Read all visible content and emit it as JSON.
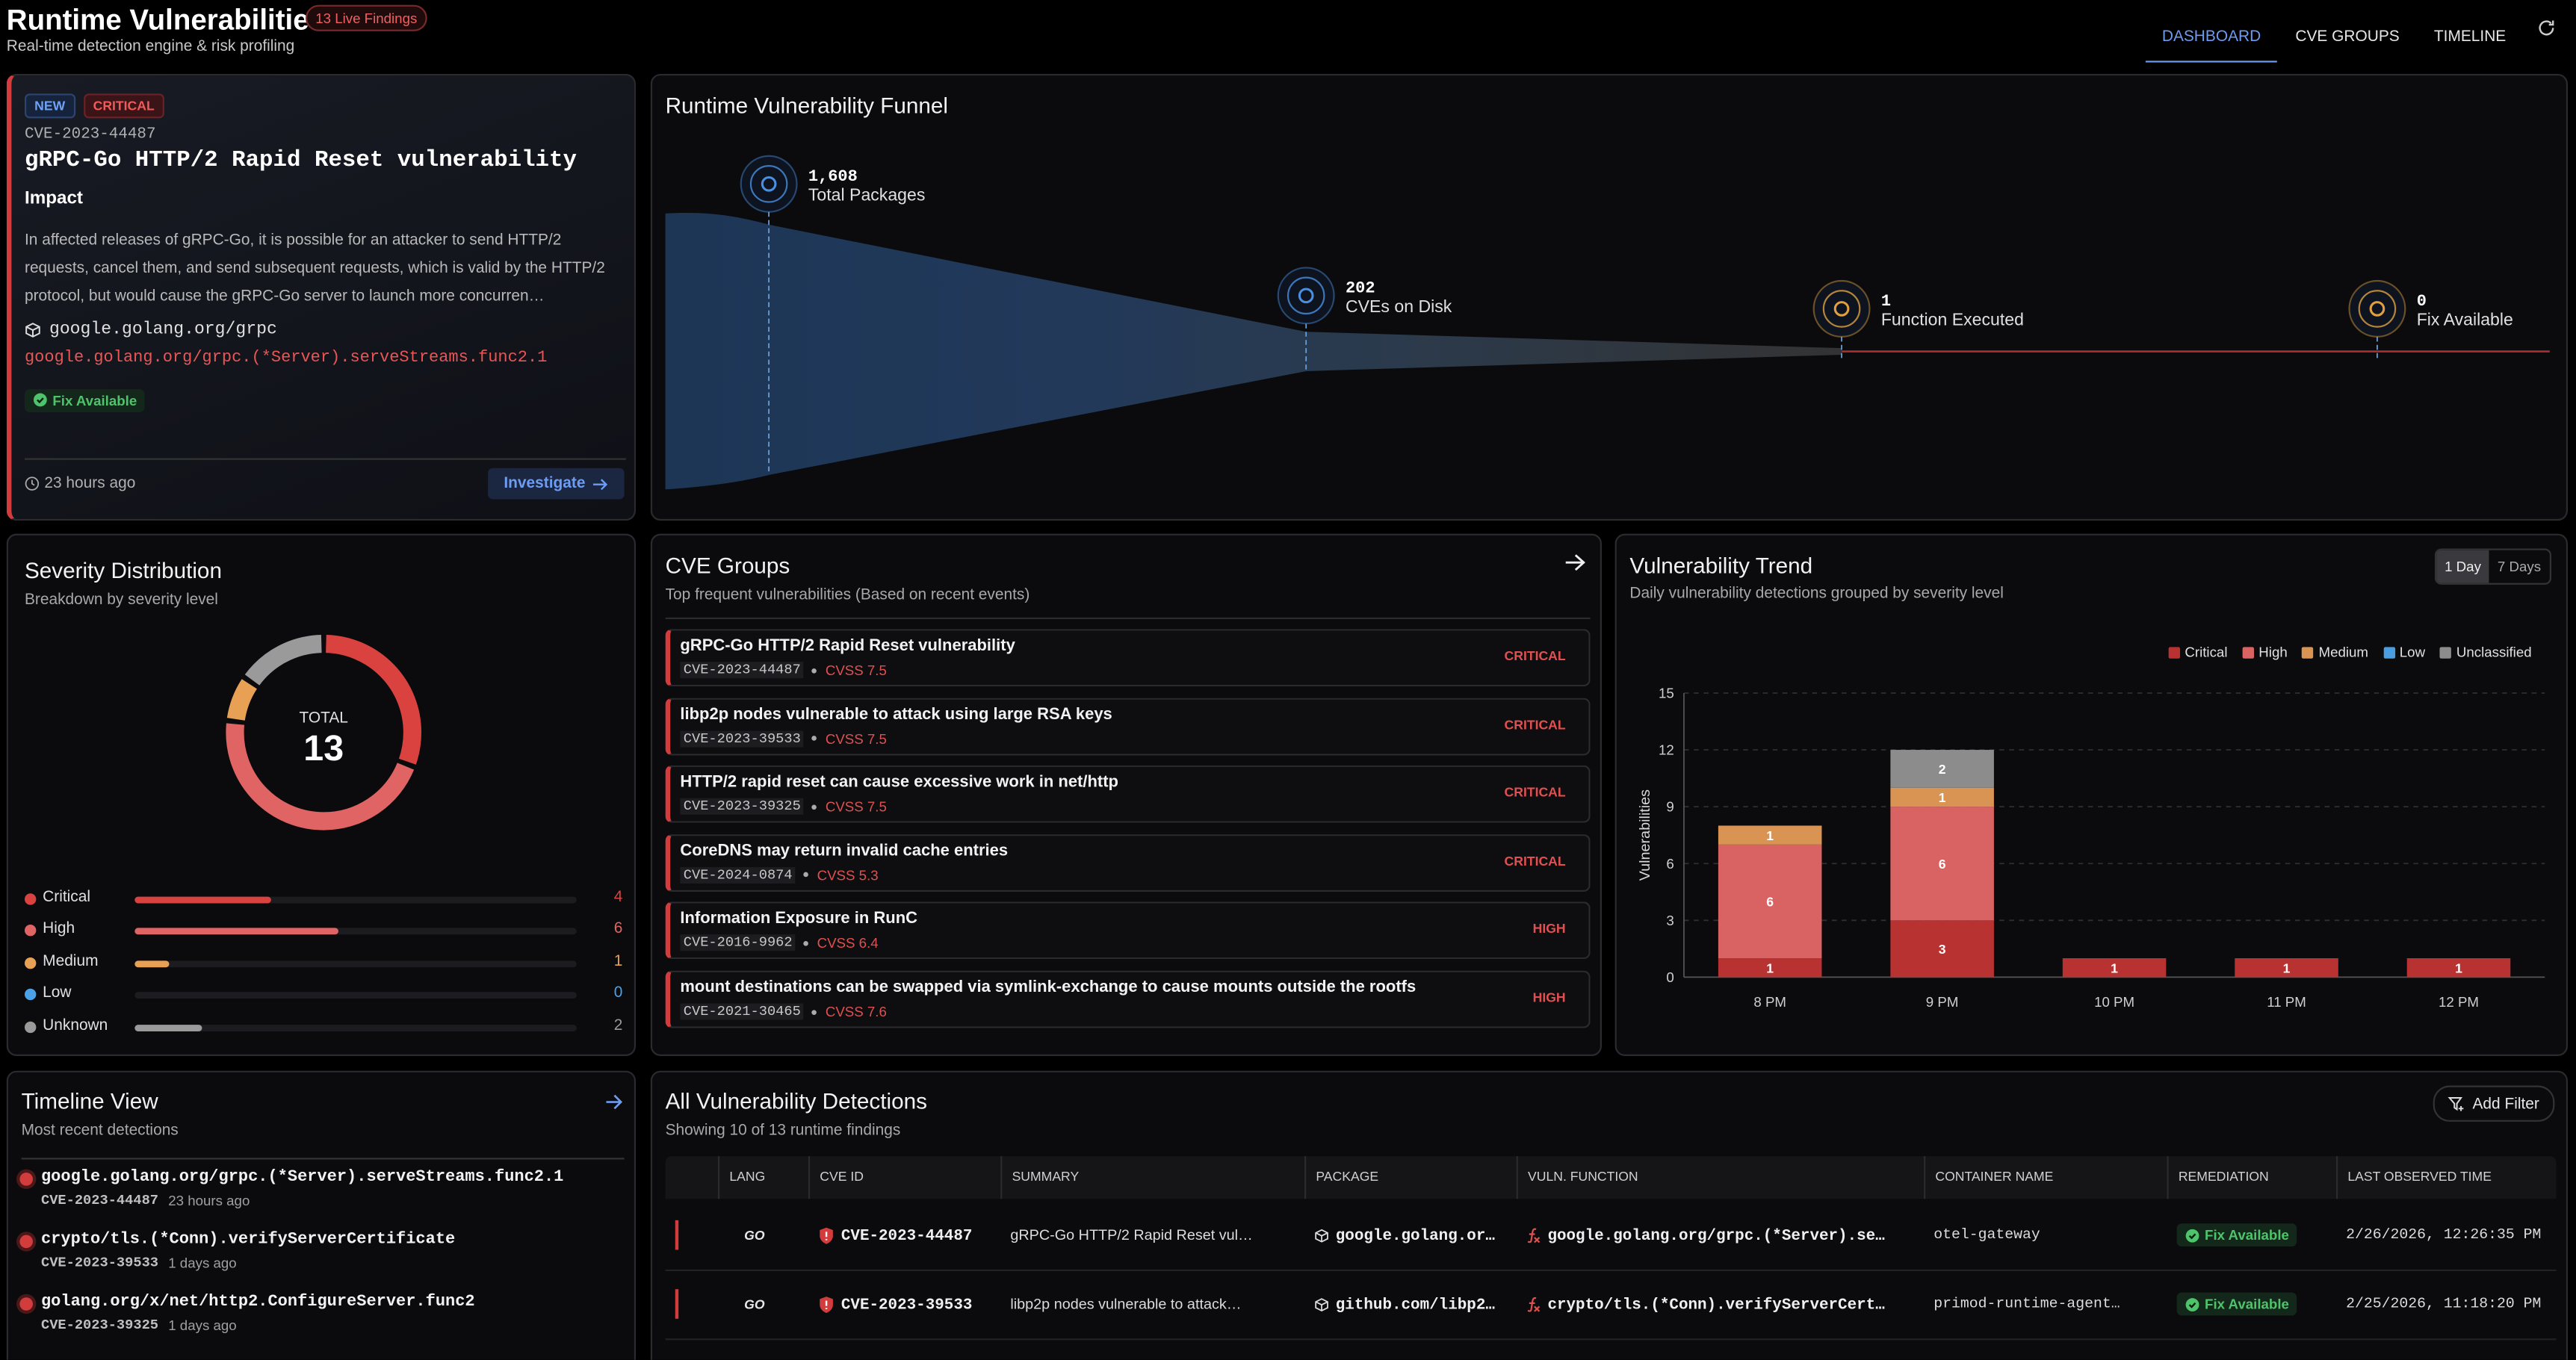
{
  "header": {
    "title": "Runtime Vulnerabilities",
    "badge": "13 Live Findings",
    "subtitle": "Real-time detection engine & risk profiling",
    "tabs": [
      "DASHBOARD",
      "CVE GROUPS",
      "TIMELINE"
    ]
  },
  "featured": {
    "tags": [
      "NEW",
      "CRITICAL"
    ],
    "cve": "CVE-2023-44487",
    "title": "gRPC-Go HTTP/2 Rapid Reset vulnerability",
    "impact_label": "Impact",
    "description": "In affected releases of gRPC-Go, it is possible for an attacker to send HTTP/2 requests, cancel them, and send subsequent requests, which is valid by the HTTP/2 protocol, but would cause the gRPC-Go server to launch more concurren…",
    "package": "google.golang.org/grpc",
    "function": "google.golang.org/grpc.(*Server).serveStreams.func2.1",
    "fix": "Fix Available",
    "time": "23 hours ago",
    "action": "Investigate"
  },
  "funnel": {
    "title": "Runtime Vulnerability Funnel",
    "stages": [
      {
        "count": "1,608",
        "label": "Total Packages"
      },
      {
        "count": "202",
        "label": "CVEs on Disk"
      },
      {
        "count": "1",
        "label": "Function Executed"
      },
      {
        "count": "0",
        "label": "Fix Available"
      }
    ]
  },
  "severity": {
    "title": "Severity Distribution",
    "subtitle": "Breakdown by severity level",
    "total_label": "TOTAL",
    "total": 13,
    "rows": [
      {
        "name": "Critical",
        "value": 4,
        "color": "#d9423f"
      },
      {
        "name": "High",
        "value": 6,
        "color": "#e06464"
      },
      {
        "name": "Medium",
        "value": 1,
        "color": "#e8a055"
      },
      {
        "name": "Low",
        "value": 0,
        "color": "#4aa3e8"
      },
      {
        "name": "Unknown",
        "value": 2,
        "color": "#9a9a9a"
      }
    ]
  },
  "cve_groups": {
    "title": "CVE Groups",
    "subtitle": "Top frequent vulnerabilities (Based on recent events)",
    "items": [
      {
        "title": "gRPC-Go HTTP/2 Rapid Reset vulnerability",
        "cve": "CVE-2023-44487",
        "cvss": "CVSS 7.5",
        "severity": "CRITICAL"
      },
      {
        "title": "libp2p nodes vulnerable to attack using large RSA keys",
        "cve": "CVE-2023-39533",
        "cvss": "CVSS 7.5",
        "severity": "CRITICAL"
      },
      {
        "title": "HTTP/2 rapid reset can cause excessive work in net/http",
        "cve": "CVE-2023-39325",
        "cvss": "CVSS 7.5",
        "severity": "CRITICAL"
      },
      {
        "title": "CoreDNS may return invalid cache entries",
        "cve": "CVE-2024-0874",
        "cvss": "CVSS 5.3",
        "severity": "CRITICAL"
      },
      {
        "title": "Information Exposure in RunC",
        "cve": "CVE-2016-9962",
        "cvss": "CVSS 6.4",
        "severity": "HIGH"
      },
      {
        "title": "mount destinations can be swapped via symlink-exchange to cause mounts outside the rootfs",
        "cve": "CVE-2021-30465",
        "cvss": "CVSS 7.6",
        "severity": "HIGH"
      }
    ]
  },
  "trend": {
    "title": "Vulnerability Trend",
    "subtitle": "Daily vulnerability detections grouped by severity level",
    "toggles": [
      "1 Day",
      "7 Days"
    ],
    "chart": {
      "type": "bar",
      "stacked": true,
      "y_label": "Vulnerabilities",
      "categories": [
        "8 PM",
        "9 PM",
        "10 PM",
        "11 PM",
        "12 PM"
      ],
      "series": [
        {
          "name": "Critical",
          "color": "#b83232",
          "values": [
            1,
            3,
            1,
            1,
            1
          ]
        },
        {
          "name": "High",
          "color": "#d96262",
          "values": [
            6,
            6,
            0,
            0,
            0
          ]
        },
        {
          "name": "Medium",
          "color": "#d99352",
          "values": [
            1,
            1,
            0,
            0,
            0
          ]
        },
        {
          "name": "Low",
          "color": "#4a9ee0",
          "values": [
            0,
            0,
            0,
            0,
            0
          ]
        },
        {
          "name": "Unclassified",
          "color": "#8c8c8c",
          "values": [
            0,
            2,
            0,
            0,
            0
          ]
        }
      ],
      "ylim": [
        0,
        15
      ],
      "yticks": [
        0,
        3,
        6,
        9,
        12,
        15
      ],
      "grid": true
    }
  },
  "timeline": {
    "title": "Timeline View",
    "subtitle": "Most recent detections",
    "items": [
      {
        "function": "google.golang.org/grpc.(*Server).serveStreams.func2.1",
        "cve": "CVE-2023-44487",
        "time": "23 hours ago"
      },
      {
        "function": "crypto/tls.(*Conn).verifyServerCertificate",
        "cve": "CVE-2023-39533",
        "time": "1 days ago"
      },
      {
        "function": "golang.org/x/net/http2.ConfigureServer.func2",
        "cve": "CVE-2023-39325",
        "time": "1 days ago"
      }
    ]
  },
  "detections": {
    "title": "All Vulnerability Detections",
    "subtitle": "Showing 10 of 13 runtime findings",
    "filter": "Add Filter",
    "columns": [
      "LANG",
      "CVE ID",
      "SUMMARY",
      "PACKAGE",
      "VULN. FUNCTION",
      "CONTAINER NAME",
      "REMEDIATION",
      "LAST OBSERVED TIME"
    ],
    "rows": [
      {
        "lang": "GO",
        "cve": "CVE-2023-44487",
        "summary": "gRPC-Go HTTP/2 Rapid Reset vul…",
        "package": "google.golang.or…",
        "function": "google.golang.org/grpc.(*Server).se…",
        "container": "otel-gateway",
        "remediation": "Fix Available",
        "last_observed": "2/26/2026, 12:26:35 PM"
      },
      {
        "lang": "GO",
        "cve": "CVE-2023-39533",
        "summary": "libp2p nodes vulnerable to attack…",
        "package": "github.com/libp2…",
        "function": "crypto/tls.(*Conn).verifyServerCert…",
        "container": "primod-runtime-agent…",
        "remediation": "Fix Available",
        "last_observed": "2/25/2026, 11:18:20 PM"
      }
    ]
  }
}
